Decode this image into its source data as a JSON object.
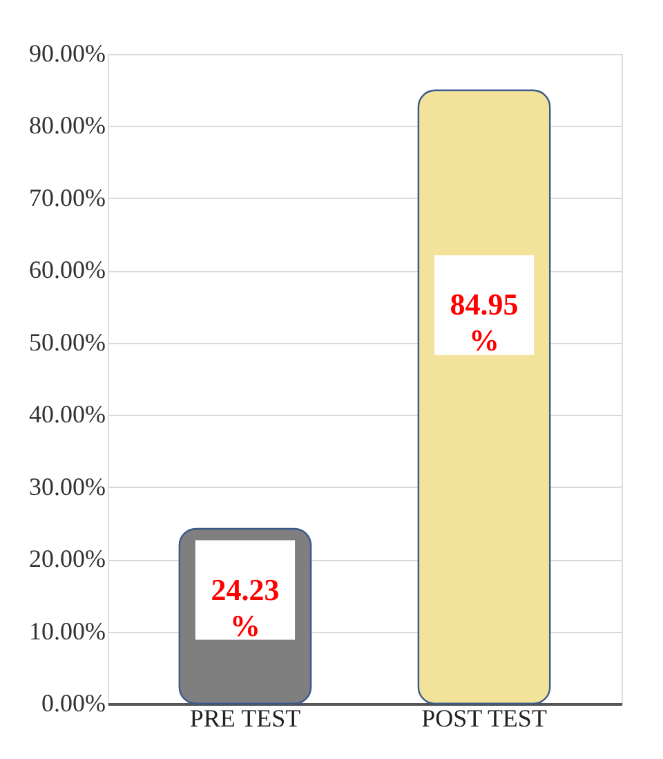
{
  "chart_data": {
    "type": "bar",
    "categories": [
      "PRE TEST",
      "POST TEST"
    ],
    "values": [
      24.23,
      84.95
    ],
    "colors": [
      "#7f7f7f",
      "#f3e29a"
    ],
    "value_labels": [
      "24.23 %",
      "84.95 %"
    ],
    "ylim": [
      0,
      90
    ],
    "yticks": [
      {
        "value": 0,
        "label": "0.00%"
      },
      {
        "value": 10,
        "label": "10.00%"
      },
      {
        "value": 20,
        "label": "20.00%"
      },
      {
        "value": 30,
        "label": "30.00%"
      },
      {
        "value": 40,
        "label": "40.00%"
      },
      {
        "value": 50,
        "label": "50.00%"
      },
      {
        "value": 60,
        "label": "60.00%"
      },
      {
        "value": 70,
        "label": "70.00%"
      },
      {
        "value": 80,
        "label": "80.00%"
      },
      {
        "value": 90,
        "label": "90.00%"
      }
    ],
    "grid": "y"
  }
}
